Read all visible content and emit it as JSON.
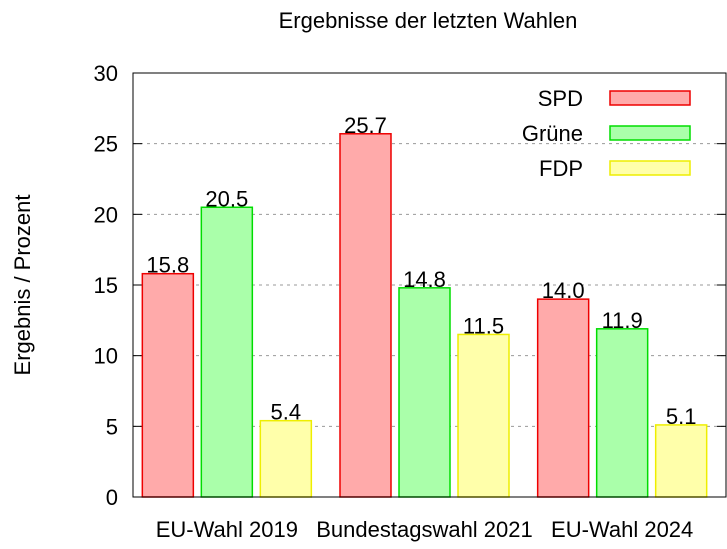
{
  "chart_data": {
    "type": "bar",
    "title": "Ergebnisse der letzten Wahlen",
    "ylabel": "Ergebnis / Prozent",
    "categories": [
      "EU-Wahl 2019",
      "Bundestagswahl 2021",
      "EU-Wahl 2024"
    ],
    "series": [
      {
        "name": "SPD",
        "color": "#ffaaaa",
        "stroke": "#ee0000",
        "values": [
          15.8,
          25.7,
          14.0
        ],
        "value_labels": [
          "15.8",
          "25.7",
          "14.0"
        ]
      },
      {
        "name": "Grüne",
        "color": "#aaffaa",
        "stroke": "#00dd00",
        "values": [
          20.5,
          14.8,
          11.9
        ],
        "value_labels": [
          "20.5",
          "14.8",
          "11.9"
        ]
      },
      {
        "name": "FDP",
        "color": "#ffffaa",
        "stroke": "#eeee00",
        "values": [
          5.4,
          11.5,
          5.1
        ],
        "value_labels": [
          "5.4",
          "11.5",
          "5.1"
        ]
      }
    ],
    "ylim": [
      0,
      30
    ],
    "yticks": [
      0,
      5,
      10,
      15,
      20,
      25,
      30
    ],
    "grid": true,
    "legend": "top-right"
  }
}
